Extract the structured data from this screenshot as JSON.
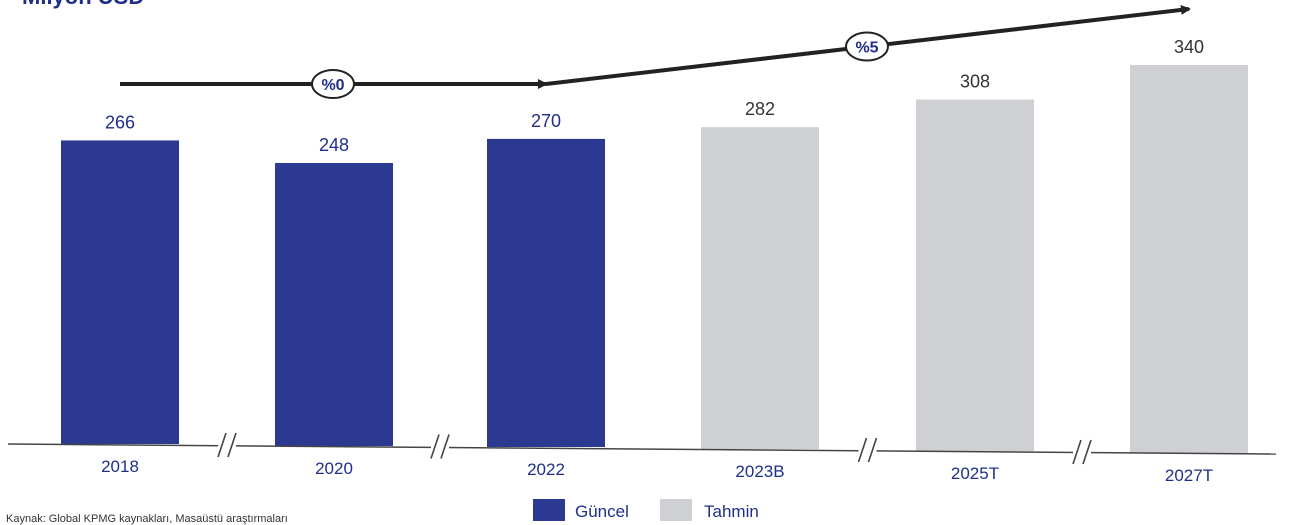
{
  "chart_data": {
    "type": "bar",
    "unit_label": "Milyon USD",
    "categories": [
      "2018",
      "2020",
      "2022",
      "2023B",
      "2025T",
      "2027T"
    ],
    "values": [
      266,
      248,
      270,
      282,
      308,
      340
    ],
    "kinds": [
      "actual",
      "actual",
      "actual",
      "forecast",
      "forecast",
      "forecast"
    ],
    "axis_breaks_after": [
      "2018",
      "2020",
      "2023B",
      "2025T"
    ],
    "growth_annotations": [
      {
        "label": "%0",
        "from": "2018",
        "to": "2022"
      },
      {
        "label": "%5",
        "from": "2022",
        "to": "2027T"
      }
    ],
    "legend": [
      {
        "name": "Güncel",
        "kind": "actual"
      },
      {
        "name": "Tahmin",
        "kind": "forecast"
      }
    ],
    "legend_position": "bottom-center",
    "ylim": [
      0,
      340
    ],
    "grid": false,
    "source": "Kaynak: Global KPMG kaynakları, Masaüstü araştırmaları"
  },
  "colors": {
    "actual": "#2b3990",
    "forecast": "#cfd0d4",
    "value_actual_text": "#1f2f8a",
    "value_forecast_text": "#333333",
    "arrow": "#222222",
    "axis": "#444444"
  }
}
